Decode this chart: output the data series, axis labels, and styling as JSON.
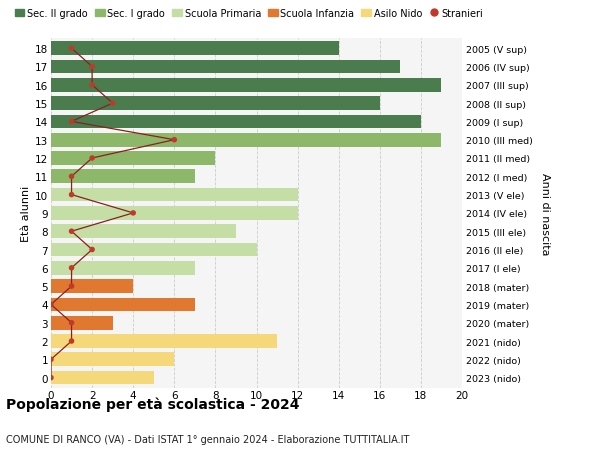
{
  "ages": [
    18,
    17,
    16,
    15,
    14,
    13,
    12,
    11,
    10,
    9,
    8,
    7,
    6,
    5,
    4,
    3,
    2,
    1,
    0
  ],
  "years_labels": [
    "2005 (V sup)",
    "2006 (IV sup)",
    "2007 (III sup)",
    "2008 (II sup)",
    "2009 (I sup)",
    "2010 (III med)",
    "2011 (II med)",
    "2012 (I med)",
    "2013 (V ele)",
    "2014 (IV ele)",
    "2015 (III ele)",
    "2016 (II ele)",
    "2017 (I ele)",
    "2018 (mater)",
    "2019 (mater)",
    "2020 (mater)",
    "2021 (nido)",
    "2022 (nido)",
    "2023 (nido)"
  ],
  "bar_values": [
    14,
    17,
    19,
    16,
    18,
    19,
    8,
    7,
    12,
    12,
    9,
    10,
    7,
    4,
    7,
    3,
    11,
    6,
    5
  ],
  "bar_colors": [
    "#4a7c4e",
    "#4a7c4e",
    "#4a7c4e",
    "#4a7c4e",
    "#4a7c4e",
    "#8db86a",
    "#8db86a",
    "#8db86a",
    "#c5dea5",
    "#c5dea5",
    "#c5dea5",
    "#c5dea5",
    "#c5dea5",
    "#e07830",
    "#e07830",
    "#e07830",
    "#f5d87a",
    "#f5d87a",
    "#f5d87a"
  ],
  "stranieri_values": [
    1,
    2,
    2,
    3,
    1,
    6,
    2,
    1,
    1,
    4,
    1,
    2,
    1,
    1,
    0,
    1,
    1,
    0,
    0
  ],
  "legend_labels": [
    "Sec. II grado",
    "Sec. I grado",
    "Scuola Primaria",
    "Scuola Infanzia",
    "Asilo Nido",
    "Stranieri"
  ],
  "legend_colors": [
    "#4a7c4e",
    "#8db86a",
    "#c5dea5",
    "#e07830",
    "#f5d87a",
    "#c0392b"
  ],
  "title": "Popolazione per età scolastica - 2024",
  "subtitle": "COMUNE DI RANCO (VA) - Dati ISTAT 1° gennaio 2024 - Elaborazione TUTTITALIA.IT",
  "ylabel_left": "Età alunni",
  "ylabel_right": "Anni di nascita",
  "xlim": [
    0,
    20
  ],
  "background_color": "#f5f5f5",
  "grid_color": "#cccccc",
  "bar_height": 0.75
}
